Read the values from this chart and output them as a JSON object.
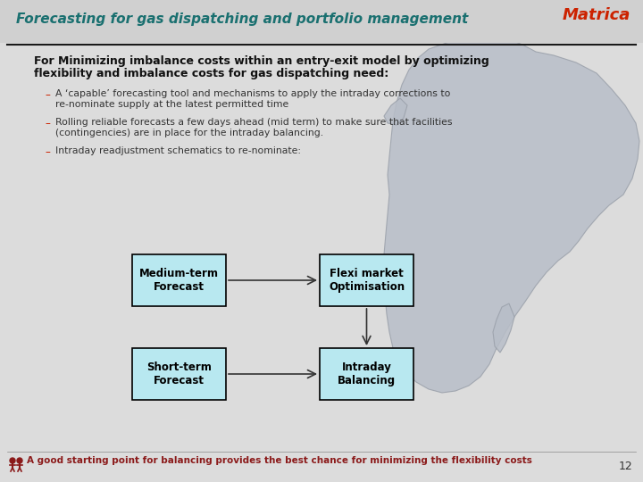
{
  "title": "Forecasting for gas dispatching and portfolio management",
  "title_color": "#1a7070",
  "title_fontsize": 11,
  "bg_color": "#dcdcdc",
  "header_line_color": "#1a1a1a",
  "matrica_color": "#cc2200",
  "body_text_1a": "For Minimizing imbalance costs within an entry-exit model by optimizing",
  "body_text_1b": "flexibility and imbalance costs for gas dispatching need:",
  "bullet1a": "A ‘capable’ forecasting tool and mechanisms to apply the intraday corrections to",
  "bullet1b": "re-nominate supply at the latest permitted time",
  "bullet2a": "Rolling reliable forecasts a few days ahead (mid term) to make sure that facilities",
  "bullet2b": "(contingencies) are in place for the intraday balancing.",
  "bullet3": "Intraday readjustment schematics to re-nominate:",
  "box1_label": "Medium-term\nForecast",
  "box2_label": "Flexi market\nOptimisation",
  "box3_label": "Short-term\nForecast",
  "box4_label": "Intraday\nBalancing",
  "box_fill": "#b8e8f0",
  "box_edge": "#000000",
  "footer_color": "#8b1a1a",
  "page_num": "12",
  "map_color": "#b8bec8",
  "map_edge_color": "#9aa0aa"
}
